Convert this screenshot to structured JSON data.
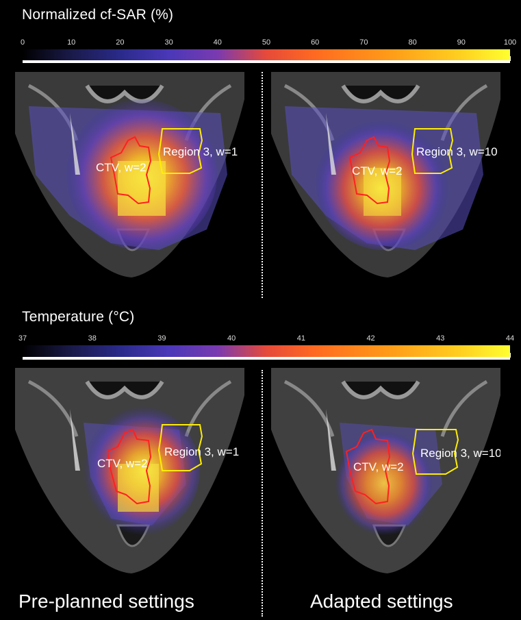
{
  "sar": {
    "title": "Normalized  cf-SAR (%)",
    "ticks": [
      "0",
      "10",
      "20",
      "30",
      "40",
      "50",
      "60",
      "70",
      "80",
      "90",
      "100"
    ]
  },
  "temp": {
    "title": "Temperature  (°C)",
    "ticks": [
      "37",
      "38",
      "39",
      "40",
      "41",
      "42",
      "43",
      "44"
    ]
  },
  "panels": {
    "ctv_label": "CTV, w=2",
    "region_left": "Region 3, w=1",
    "region_right": "Region 3, w=10"
  },
  "captions": {
    "left": "Pre-planned settings",
    "right": "Adapted settings"
  },
  "colors": {
    "ctv_contour": "#ff2020",
    "region_contour": "#ffee00"
  }
}
